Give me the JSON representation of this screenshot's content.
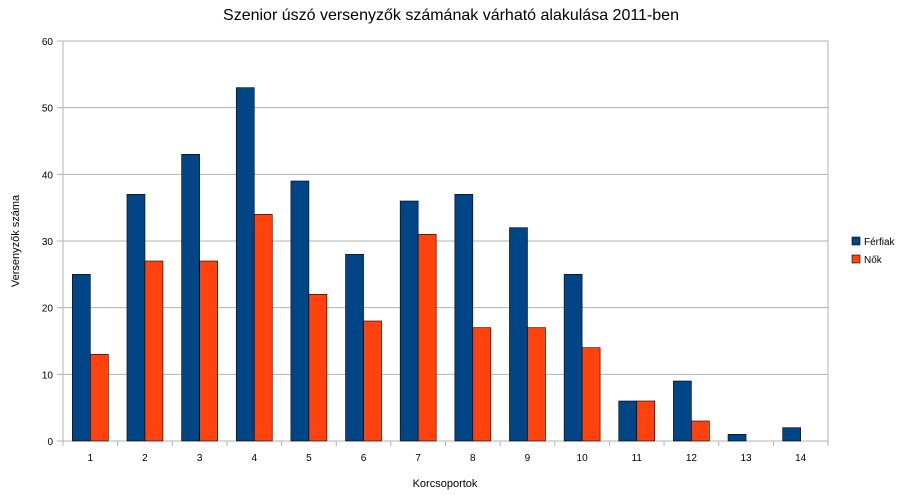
{
  "chart_data": {
    "type": "bar",
    "title": "Szenior úszó versenyzők számának várható alakulása 2011-ben",
    "xlabel": "Korcsoportok",
    "ylabel": "Versenyzők száma",
    "categories": [
      "1",
      "2",
      "3",
      "4",
      "5",
      "6",
      "7",
      "8",
      "9",
      "10",
      "11",
      "12",
      "13",
      "14"
    ],
    "ylim": [
      0,
      60
    ],
    "yticks": [
      0,
      10,
      20,
      30,
      40,
      50,
      60
    ],
    "grid": true,
    "legend": "right",
    "series": [
      {
        "name": "Férfiak",
        "color": "#004586",
        "values": [
          25,
          37,
          43,
          53,
          39,
          28,
          36,
          37,
          32,
          25,
          6,
          9,
          1,
          2
        ]
      },
      {
        "name": "Nők",
        "color": "#ff420e",
        "values": [
          13,
          27,
          27,
          34,
          22,
          18,
          31,
          17,
          17,
          14,
          6,
          3,
          0,
          0
        ]
      }
    ]
  }
}
